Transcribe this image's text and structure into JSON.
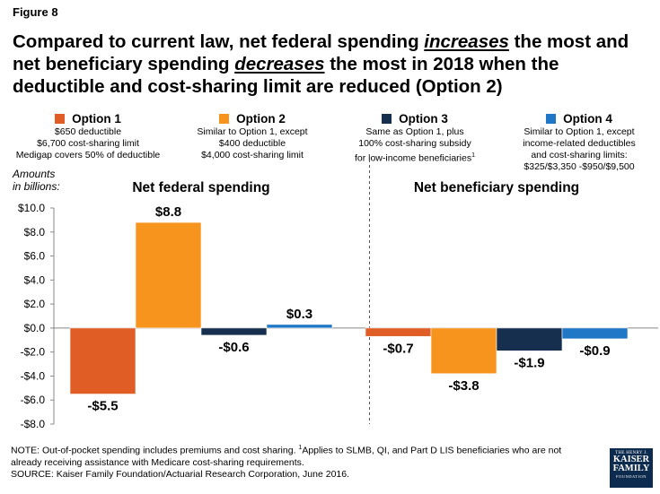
{
  "figure_label": "Figure 8",
  "title": {
    "p1": "Compared to current law, net federal spending ",
    "em1": "increases",
    "p2": " the most and net beneficiary spending ",
    "em2": "decreases",
    "p3": " the most in 2018 when the deductible and cost-sharing limit are reduced (Option 2)"
  },
  "legend": [
    {
      "label": "Option 1",
      "color": "#e05d25",
      "desc": [
        "$650 deductible",
        "$6,700 cost-sharing limit",
        "Medigap covers 50% of deductible"
      ]
    },
    {
      "label": "Option 2",
      "color": "#f7941d",
      "desc": [
        "Similar to Option 1, except",
        "$400 deductible",
        "$4,000 cost-sharing limit"
      ]
    },
    {
      "label": "Option 3",
      "color": "#172f4f",
      "desc": [
        "Same as Option 1, plus",
        "100% cost-sharing subsidy",
        "for low-income beneficiaries"
      ],
      "desc_sup": "1"
    },
    {
      "label": "Option 4",
      "color": "#1f77c6",
      "desc": [
        "Similar to Option 1, except",
        "income-related deductibles",
        "and cost-sharing limits:",
        "$325/$3,350 -$950/$9,500"
      ]
    }
  ],
  "chart_data": {
    "type": "bar",
    "ylabel": "Amounts in billions:",
    "ylabel_lines": [
      "Amounts",
      "in billions:"
    ],
    "ylim": [
      -8,
      10
    ],
    "yticks": [
      10,
      8,
      6,
      4,
      2,
      0,
      -2,
      -4,
      -6,
      -8
    ],
    "ytick_labels": [
      "$10.0",
      "$8.0",
      "$6.0",
      "$4.0",
      "$2.0",
      "$0.0",
      "-$2.0",
      "-$4.0",
      "-$6.0",
      "-$8.0"
    ],
    "categories": [
      "Net federal spending",
      "Net beneficiary spending"
    ],
    "series": [
      {
        "name": "Option 1",
        "values": [
          -5.5,
          -0.7
        ],
        "labels": [
          "-$5.5",
          "-$0.7"
        ]
      },
      {
        "name": "Option 2",
        "values": [
          8.8,
          -3.8
        ],
        "labels": [
          "$8.8",
          "-$3.8"
        ]
      },
      {
        "name": "Option 3",
        "values": [
          -0.6,
          -1.9
        ],
        "labels": [
          "-$0.6",
          "-$1.9"
        ]
      },
      {
        "name": "Option 4",
        "values": [
          0.3,
          -0.9
        ],
        "labels": [
          "$0.3",
          "-$0.9"
        ]
      }
    ],
    "divider": "dashed vertical line between groups"
  },
  "note": {
    "prefix": "NOTE: Out-of-pocket spending includes premiums and cost sharing. ",
    "sup": "1",
    "rest": "Applies to SLMB, QI, and Part D LIS beneficiaries who are not already receiving assistance with Medicare cost-sharing requirements.",
    "source": "SOURCE: Kaiser Family Foundation/Actuarial Research Corporation, June 2016."
  },
  "logo": {
    "line1": "THE HENRY J.",
    "line2": "KAISER",
    "line3": "FAMILY",
    "line4": "FOUNDATION"
  }
}
